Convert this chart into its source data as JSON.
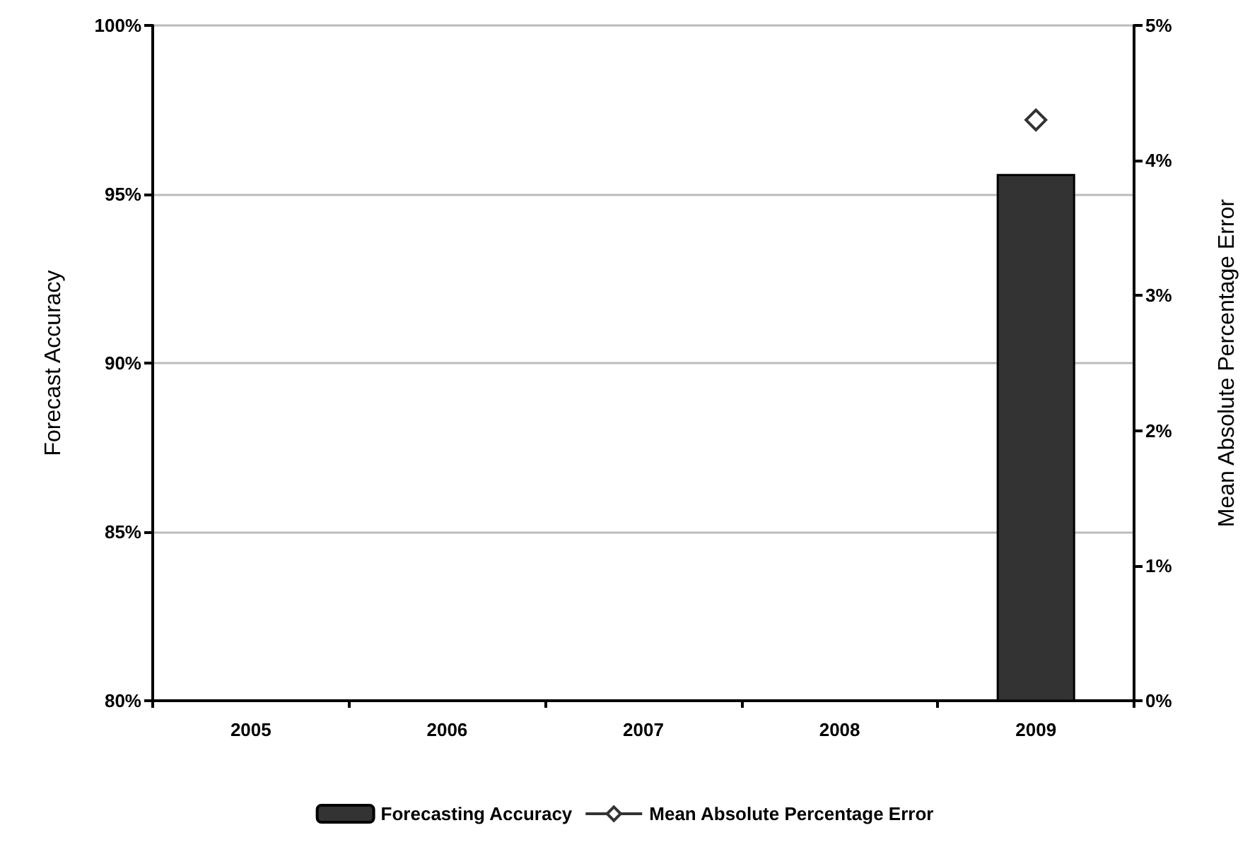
{
  "chart_data": {
    "type": "bar",
    "categories": [
      "2005",
      "2006",
      "2007",
      "2008",
      "2009"
    ],
    "ylabel": "Forecast Accuracy",
    "y2label": "Mean Absolute Percentage Error",
    "series": [
      {
        "name": "Forecasting Accuracy",
        "color": "#333333",
        "values": [
          null,
          null,
          null,
          null,
          95.6
        ]
      },
      {
        "name": "Mean Absolute Percentage Error",
        "type": "line",
        "axis": "y2",
        "color": "#333333",
        "marker": "diamond",
        "values": [
          null,
          null,
          null,
          null,
          4.3
        ]
      }
    ],
    "ylim": [
      80,
      100
    ],
    "yticks": [
      {
        "value": 80,
        "label": "80%"
      },
      {
        "value": 85,
        "label": "85%"
      },
      {
        "value": 90,
        "label": "90%"
      },
      {
        "value": 95,
        "label": "95%"
      },
      {
        "value": 100,
        "label": "100%"
      }
    ],
    "y2lim": [
      0,
      5
    ],
    "y2ticks": [
      {
        "value": 0,
        "label": "0%"
      },
      {
        "value": 1,
        "label": "1%"
      },
      {
        "value": 2,
        "label": "2%"
      },
      {
        "value": 3,
        "label": "3%"
      },
      {
        "value": 4,
        "label": "4%"
      },
      {
        "value": 5,
        "label": "5%"
      }
    ],
    "grid": "y",
    "legend": "bottom"
  }
}
